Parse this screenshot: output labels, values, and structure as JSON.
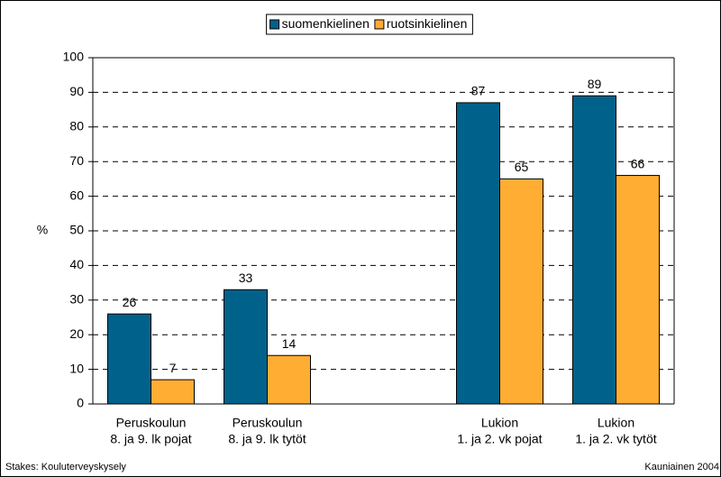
{
  "chart_data": {
    "type": "bar",
    "categories": [
      [
        "Peruskoulun",
        "8. ja 9. lk pojat"
      ],
      [
        "Peruskoulun",
        "8. ja 9. lk tytöt"
      ],
      null,
      [
        "Lukion",
        "1. ja 2. vk pojat"
      ],
      [
        "Lukion",
        "1. ja 2. vk tytöt"
      ]
    ],
    "series": [
      {
        "name": "suomenkielinen",
        "color": "#00628b",
        "values": [
          26,
          33,
          null,
          87,
          89
        ]
      },
      {
        "name": "ruotsinkielinen",
        "color": "#ffad33",
        "values": [
          7,
          14,
          null,
          65,
          66
        ]
      }
    ],
    "ylabel": "%",
    "ylim": [
      0,
      100
    ],
    "yticks": [
      0,
      10,
      20,
      30,
      40,
      50,
      60,
      70,
      80,
      90,
      100
    ],
    "grid": true,
    "legend": "top",
    "source": "Stakes: Kouluterveyskysely",
    "note": "Kauniainen 2004"
  }
}
